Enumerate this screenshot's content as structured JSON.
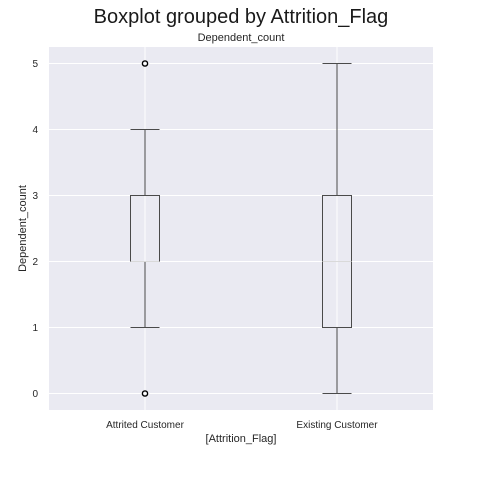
{
  "suptitle": "Boxplot grouped by Attrition_Flag",
  "chart_data": {
    "type": "boxplot",
    "title": "Dependent_count",
    "xlabel": "[Attrition_Flag]",
    "ylabel": "Dependent_count",
    "categories": [
      "Attrited Customer",
      "Existing Customer"
    ],
    "ylim": [
      -0.25,
      5.25
    ],
    "yticks": [
      0,
      1,
      2,
      3,
      4,
      5
    ],
    "boxes": [
      {
        "name": "Attrited Customer",
        "whisker_low": 1,
        "q1": 2,
        "median": 2,
        "q3": 3,
        "whisker_high": 4,
        "outliers": [
          0,
          5
        ]
      },
      {
        "name": "Existing Customer",
        "whisker_low": 0,
        "q1": 1,
        "median": 2,
        "q3": 3,
        "whisker_high": 5,
        "outliers": []
      }
    ],
    "grid": true,
    "colors": {
      "background": "#eaeaf2",
      "grid": "#ffffff",
      "box": "#4a4a4a",
      "median": "#d9d9d9"
    }
  }
}
